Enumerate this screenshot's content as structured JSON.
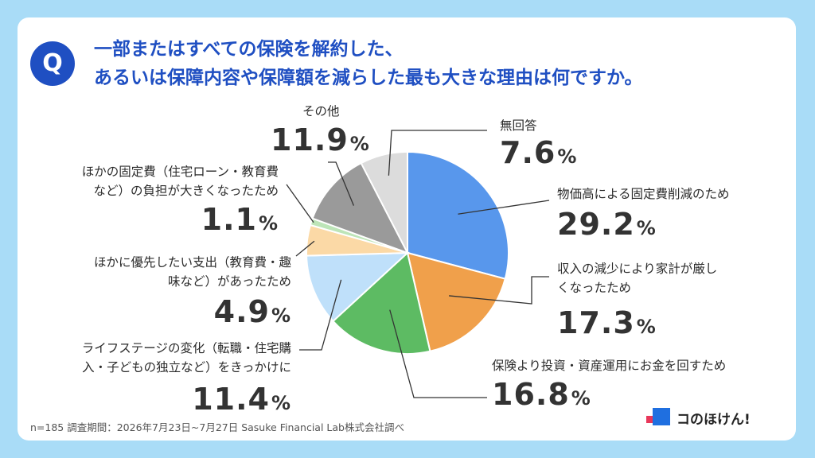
{
  "question_badge": "Q",
  "title": {
    "line1": "一部またはすべての保険を解約した、",
    "line2": "あるいは保障内容や保障額を減らした最も大きな理由は何ですか。"
  },
  "chart_data": {
    "type": "pie",
    "start_angle_deg": 0,
    "direction": "clockwise",
    "slices": [
      {
        "label_lines": [
          "物価高による固定費削減のため"
        ],
        "value": 29.2,
        "pct": "29.2",
        "color": "#5897ec"
      },
      {
        "label_lines": [
          "収入の減少により家計が厳し",
          "くなったため"
        ],
        "value": 17.3,
        "pct": "17.3",
        "color": "#f0a04b"
      },
      {
        "label_lines": [
          "保険より投資・資産運用にお金を回すため"
        ],
        "value": 16.8,
        "pct": "16.8",
        "color": "#5dbb63"
      },
      {
        "label_lines": [
          "ライフステージの変化（転職・住宅購",
          "入・子どもの独立など）をきっかけに"
        ],
        "value": 11.4,
        "pct": "11.4",
        "color": "#bfe0fa"
      },
      {
        "label_lines": [
          "ほかに優先したい支出（教育費・趣",
          "味など）があったため"
        ],
        "value": 4.9,
        "pct": "4.9",
        "color": "#fbd9a6"
      },
      {
        "label_lines": [
          "ほかの固定費（住宅ローン・教育費",
          "など）の負担が大きくなったため"
        ],
        "value": 1.1,
        "pct": "1.1",
        "color": "#bde5b8"
      },
      {
        "label_lines": [
          "その他"
        ],
        "value": 11.9,
        "pct": "11.9",
        "color": "#9a9a9a"
      },
      {
        "label_lines": [
          "無回答"
        ],
        "value": 7.6,
        "pct": "7.6",
        "color": "#dcdcdc"
      }
    ]
  },
  "percent_unit": "%",
  "footnote": "n=185 調査期間：2026年7月23日~7月27日 Sasuke Financial Lab株式会社調べ",
  "logo": {
    "text": "コのほけん!"
  }
}
